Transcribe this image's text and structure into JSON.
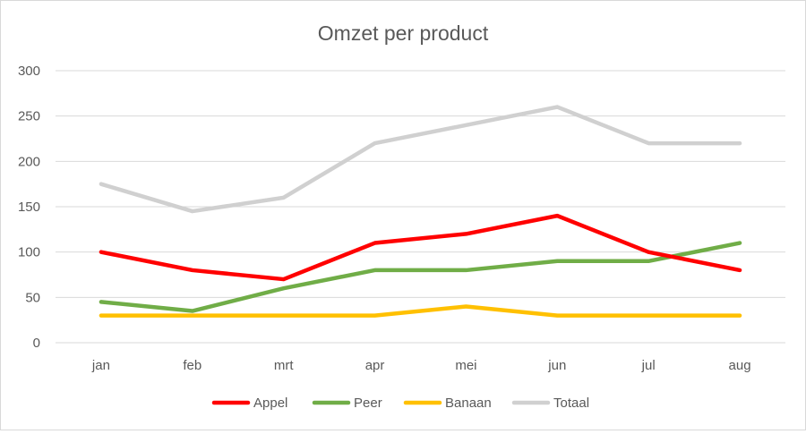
{
  "chart_data": {
    "type": "line",
    "title": "Omzet per product",
    "xlabel": "",
    "ylabel": "",
    "categories": [
      "jan",
      "feb",
      "mrt",
      "apr",
      "mei",
      "jun",
      "jul",
      "aug"
    ],
    "ylim": [
      0,
      300
    ],
    "yticks": [
      0,
      50,
      100,
      150,
      200,
      250,
      300
    ],
    "grid": true,
    "legend_position": "bottom",
    "series": [
      {
        "name": "Appel",
        "color": "#ff0000",
        "values": [
          100,
          80,
          70,
          110,
          120,
          140,
          100,
          80
        ]
      },
      {
        "name": "Peer",
        "color": "#70ad47",
        "values": [
          45,
          35,
          60,
          80,
          80,
          90,
          90,
          110
        ]
      },
      {
        "name": "Banaan",
        "color": "#ffc000",
        "values": [
          30,
          30,
          30,
          30,
          40,
          30,
          30,
          30
        ]
      },
      {
        "name": "Totaal",
        "color": "#d0d0d0",
        "values": [
          175,
          145,
          160,
          220,
          240,
          260,
          220,
          220
        ]
      }
    ]
  }
}
